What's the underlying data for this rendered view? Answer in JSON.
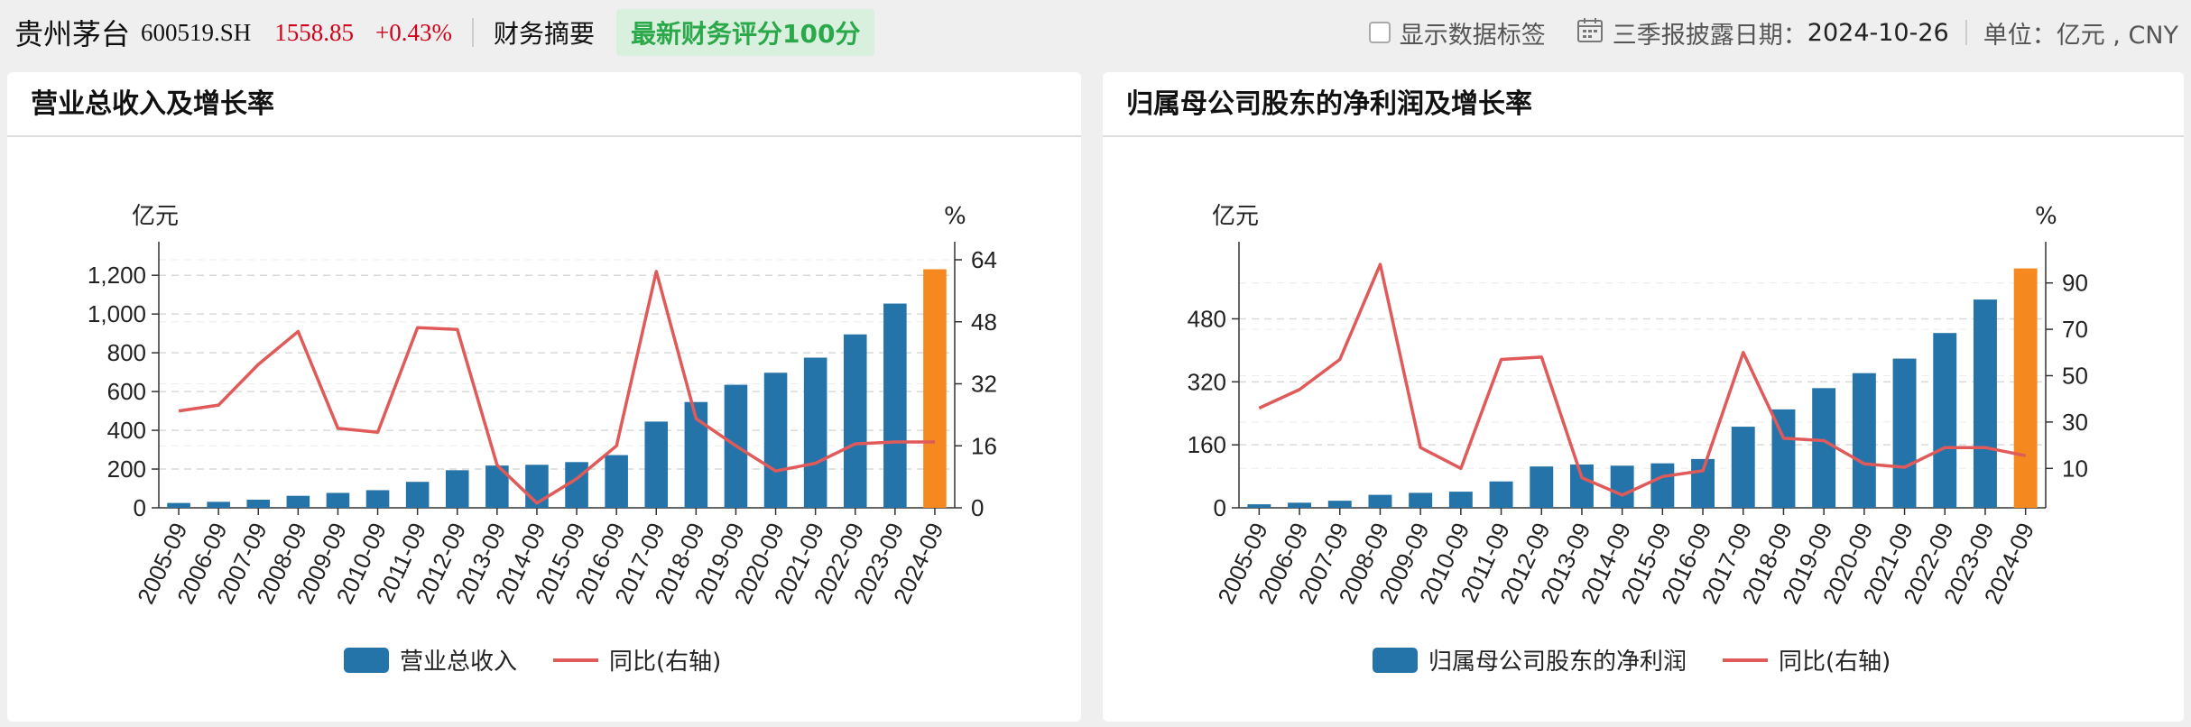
{
  "header": {
    "stock_name": "贵州茅台",
    "stock_code": "600519.SH",
    "price": "1558.85",
    "change": "+0.43%",
    "summary_label": "财务摘要",
    "score_badge": "最新财务评分100分",
    "show_labels": "显示数据标签",
    "disclosure_label": "三季报披露日期：",
    "disclosure_date": "2024-10-26",
    "unit_label": "单位：亿元 , CNY"
  },
  "colors": {
    "bar": "#2574a9",
    "bar_latest": "#f5891f",
    "line": "#e05a5a",
    "price_red": "#d0021b",
    "badge_green": "#2aa84a"
  },
  "chart_data": [
    {
      "type": "bar",
      "title": "营业总收入及增长率",
      "left_unit": "亿元",
      "right_unit": "%",
      "categories": [
        "2005-09",
        "2006-09",
        "2007-09",
        "2008-09",
        "2009-09",
        "2010-09",
        "2011-09",
        "2012-09",
        "2013-09",
        "2014-09",
        "2015-09",
        "2016-09",
        "2017-09",
        "2018-09",
        "2019-09",
        "2020-09",
        "2021-09",
        "2022-09",
        "2023-09",
        "2024-09"
      ],
      "series": [
        {
          "name": "营业总收入",
          "axis": "left",
          "type": "bar",
          "values": [
            25,
            31,
            42,
            62,
            77,
            91,
            134,
            194,
            218,
            222,
            236,
            272,
            445,
            546,
            635,
            697,
            775,
            895,
            1054,
            1231
          ]
        },
        {
          "name": "同比(右轴)",
          "axis": "right",
          "type": "line",
          "values": [
            25,
            26.5,
            37,
            45.5,
            20.5,
            19.5,
            46.5,
            46,
            11,
            1.2,
            7.5,
            16,
            61,
            23,
            16,
            9.5,
            11.5,
            16.5,
            17,
            17
          ]
        }
      ],
      "left_ticks": [
        0,
        200,
        400,
        600,
        800,
        1000,
        1200
      ],
      "left_tick_labels": [
        "0",
        "200",
        "400",
        "600",
        "800",
        "1,000",
        "1,200"
      ],
      "right_ticks": [
        0,
        16,
        32,
        48,
        64
      ],
      "right_tick_labels": [
        "0",
        "16",
        "32",
        "48",
        "64"
      ],
      "left_range": [
        0,
        1280
      ],
      "right_range": [
        0,
        64
      ],
      "grid": true,
      "legend": "bottom"
    },
    {
      "type": "bar",
      "title": "归属母公司股东的净利润及增长率",
      "left_unit": "亿元",
      "right_unit": "%",
      "categories": [
        "2005-09",
        "2006-09",
        "2007-09",
        "2008-09",
        "2009-09",
        "2010-09",
        "2011-09",
        "2012-09",
        "2013-09",
        "2014-09",
        "2015-09",
        "2016-09",
        "2017-09",
        "2018-09",
        "2019-09",
        "2020-09",
        "2021-09",
        "2022-09",
        "2023-09",
        "2024-09"
      ],
      "series": [
        {
          "name": "归属母公司股东的净利润",
          "axis": "left",
          "type": "bar",
          "values": [
            9,
            13,
            18,
            33,
            38,
            41,
            67,
            105,
            110,
            107,
            113,
            124,
            206,
            250,
            304,
            342,
            379,
            444,
            529,
            608
          ]
        },
        {
          "name": "同比(右轴)",
          "axis": "right",
          "type": "line",
          "values": [
            36,
            44,
            57,
            98,
            19,
            10,
            57,
            58,
            6,
            -1.5,
            6.5,
            9,
            60,
            23,
            22,
            12,
            10.5,
            19,
            19,
            15.5
          ]
        }
      ],
      "left_ticks": [
        0,
        160,
        320,
        480
      ],
      "left_tick_labels": [
        "0",
        "160",
        "320",
        "480"
      ],
      "right_ticks": [
        10,
        30,
        50,
        70,
        90
      ],
      "right_tick_labels": [
        "10",
        "30",
        "50",
        "70",
        "90"
      ],
      "left_range": [
        0,
        630
      ],
      "right_range": [
        -7,
        100
      ],
      "grid": true,
      "legend": "bottom"
    }
  ]
}
